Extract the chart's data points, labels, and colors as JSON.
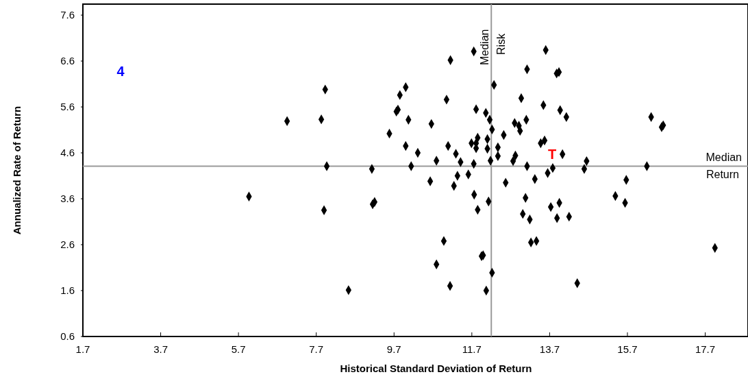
{
  "chart_data": {
    "type": "scatter",
    "xlabel": "Historical Standard Deviation of Return",
    "ylabel": "Annualized Rate of Return",
    "xlim": [
      1.7,
      18.8
    ],
    "xticks": [
      1.7,
      3.7,
      5.7,
      7.7,
      9.7,
      11.7,
      13.7,
      15.7,
      17.7
    ],
    "ylim": [
      0.6,
      7.84
    ],
    "yticks": [
      0.6,
      1.6,
      2.6,
      3.6,
      4.6,
      5.6,
      6.6,
      7.6
    ],
    "marker": "diamond",
    "grid": false,
    "ref_lines": [
      {
        "axis": "x",
        "value": 12.2,
        "label": "Median Risk",
        "color": "#999999"
      },
      {
        "axis": "y",
        "value": 4.31,
        "label": "Median Return",
        "color": "#999999"
      }
    ],
    "annotations": [
      "4",
      "T"
    ],
    "series": [
      {
        "color": "#000000",
        "x": [
          7.93,
          6.95,
          7.83,
          7.97,
          9.13,
          5.97,
          7.9,
          9.15,
          9.2,
          8.53,
          11.75,
          11.15,
          13.6,
          13.12,
          13.88,
          13.94,
          12.27,
          10.0,
          9.85,
          11.05,
          12.97,
          13.54,
          13.97,
          9.76,
          9.8,
          11.81,
          12.06,
          12.16,
          10.07,
          10.66,
          13.1,
          12.8,
          12.91,
          12.94,
          12.22,
          9.58,
          12.52,
          11.85,
          12.1,
          11.69,
          11.81,
          11.81,
          12.1,
          10.0,
          11.09,
          10.31,
          11.29,
          12.37,
          12.37,
          13.47,
          13.57,
          10.79,
          11.41,
          11.75,
          12.18,
          12.76,
          12.82,
          10.14,
          13.12,
          13.78,
          13.65,
          11.33,
          11.61,
          10.63,
          11.24,
          12.57,
          13.32,
          11.76,
          12.13,
          11.85,
          13.08,
          13.73,
          13.95,
          13.01,
          13.19,
          13.89,
          10.98,
          13.22,
          13.36,
          11.95,
          11.99,
          10.79,
          12.22,
          11.14,
          12.07,
          14.13,
          16.31,
          16.58,
          16.62,
          14.03,
          14.65,
          14.59,
          16.2,
          15.67,
          15.39,
          15.64,
          14.2,
          17.95,
          14.41
        ],
        "values": [
          5.98,
          5.29,
          5.33,
          4.31,
          4.25,
          3.65,
          3.35,
          3.48,
          3.53,
          1.61,
          6.81,
          6.62,
          6.84,
          6.42,
          6.33,
          6.36,
          6.08,
          6.03,
          5.86,
          5.76,
          5.79,
          5.64,
          5.53,
          5.5,
          5.54,
          5.55,
          5.47,
          5.32,
          5.32,
          5.23,
          5.32,
          5.25,
          5.19,
          5.08,
          5.11,
          5.02,
          4.99,
          4.93,
          4.9,
          4.81,
          4.81,
          4.7,
          4.69,
          4.75,
          4.75,
          4.6,
          4.58,
          4.72,
          4.53,
          4.81,
          4.87,
          4.43,
          4.4,
          4.36,
          4.43,
          4.42,
          4.54,
          4.31,
          4.31,
          4.27,
          4.16,
          4.1,
          4.13,
          3.98,
          3.88,
          3.95,
          4.03,
          3.69,
          3.54,
          3.36,
          3.62,
          3.42,
          3.51,
          3.27,
          3.15,
          3.18,
          2.68,
          2.65,
          2.68,
          2.35,
          2.37,
          2.17,
          1.99,
          1.7,
          1.6,
          5.38,
          5.38,
          5.16,
          5.2,
          4.57,
          4.42,
          4.25,
          4.31,
          4.01,
          3.66,
          3.51,
          3.21,
          2.53,
          1.76
        ]
      }
    ]
  }
}
